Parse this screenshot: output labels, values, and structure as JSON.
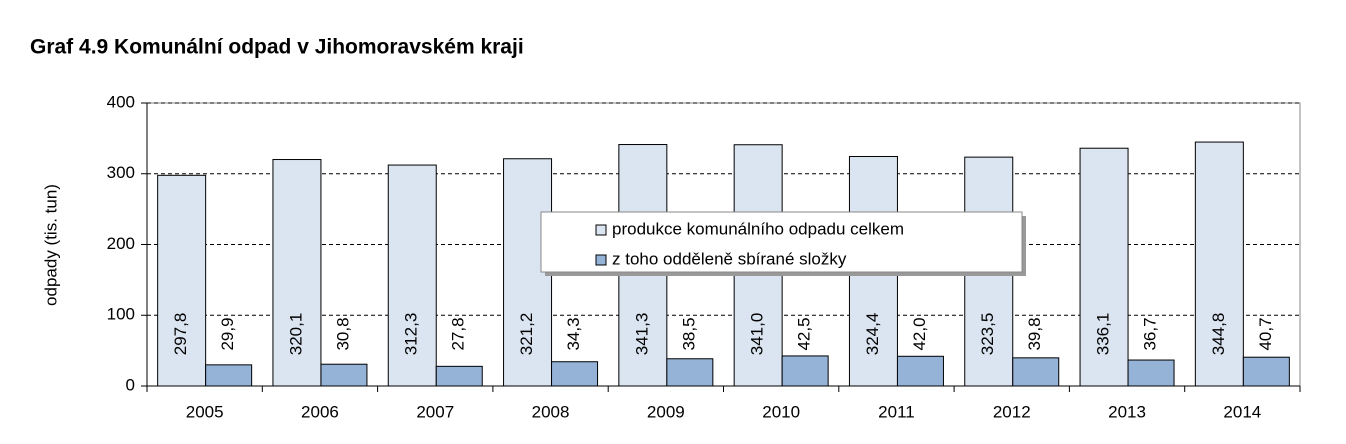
{
  "chart_data": {
    "type": "bar",
    "title": "Graf 4.9 Komunální odpad v Jihomoravském kraji",
    "y_label": "odpady (tis. tun)",
    "categories": [
      "2005",
      "2006",
      "2007",
      "2008",
      "2009",
      "2010",
      "2011",
      "2012",
      "2013",
      "2014"
    ],
    "series": [
      {
        "name": "produkce komunálního odpadu celkem",
        "color": "#dbe5f1",
        "values": [
          297.8,
          320.1,
          312.3,
          321.2,
          341.3,
          341.0,
          324.4,
          323.5,
          336.1,
          344.8
        ],
        "value_labels": [
          "297,8",
          "320,1",
          "312,3",
          "321,2",
          "341,3",
          "341,0",
          "324,4",
          "323,5",
          "336,1",
          "344,8"
        ]
      },
      {
        "name": "z toho odděleně sbírané složky",
        "color": "#95b3d7",
        "values": [
          29.9,
          30.8,
          27.8,
          34.3,
          38.5,
          42.5,
          42.0,
          39.8,
          36.7,
          40.7
        ],
        "value_labels": [
          "29,9",
          "30,8",
          "27,8",
          "34,3",
          "38,5",
          "42,5",
          "42,0",
          "39,8",
          "36,7",
          "40,7"
        ]
      }
    ],
    "ylim": [
      0,
      400
    ],
    "yticks": [
      0,
      100,
      200,
      300,
      400
    ],
    "grid": true,
    "legend": "center"
  }
}
